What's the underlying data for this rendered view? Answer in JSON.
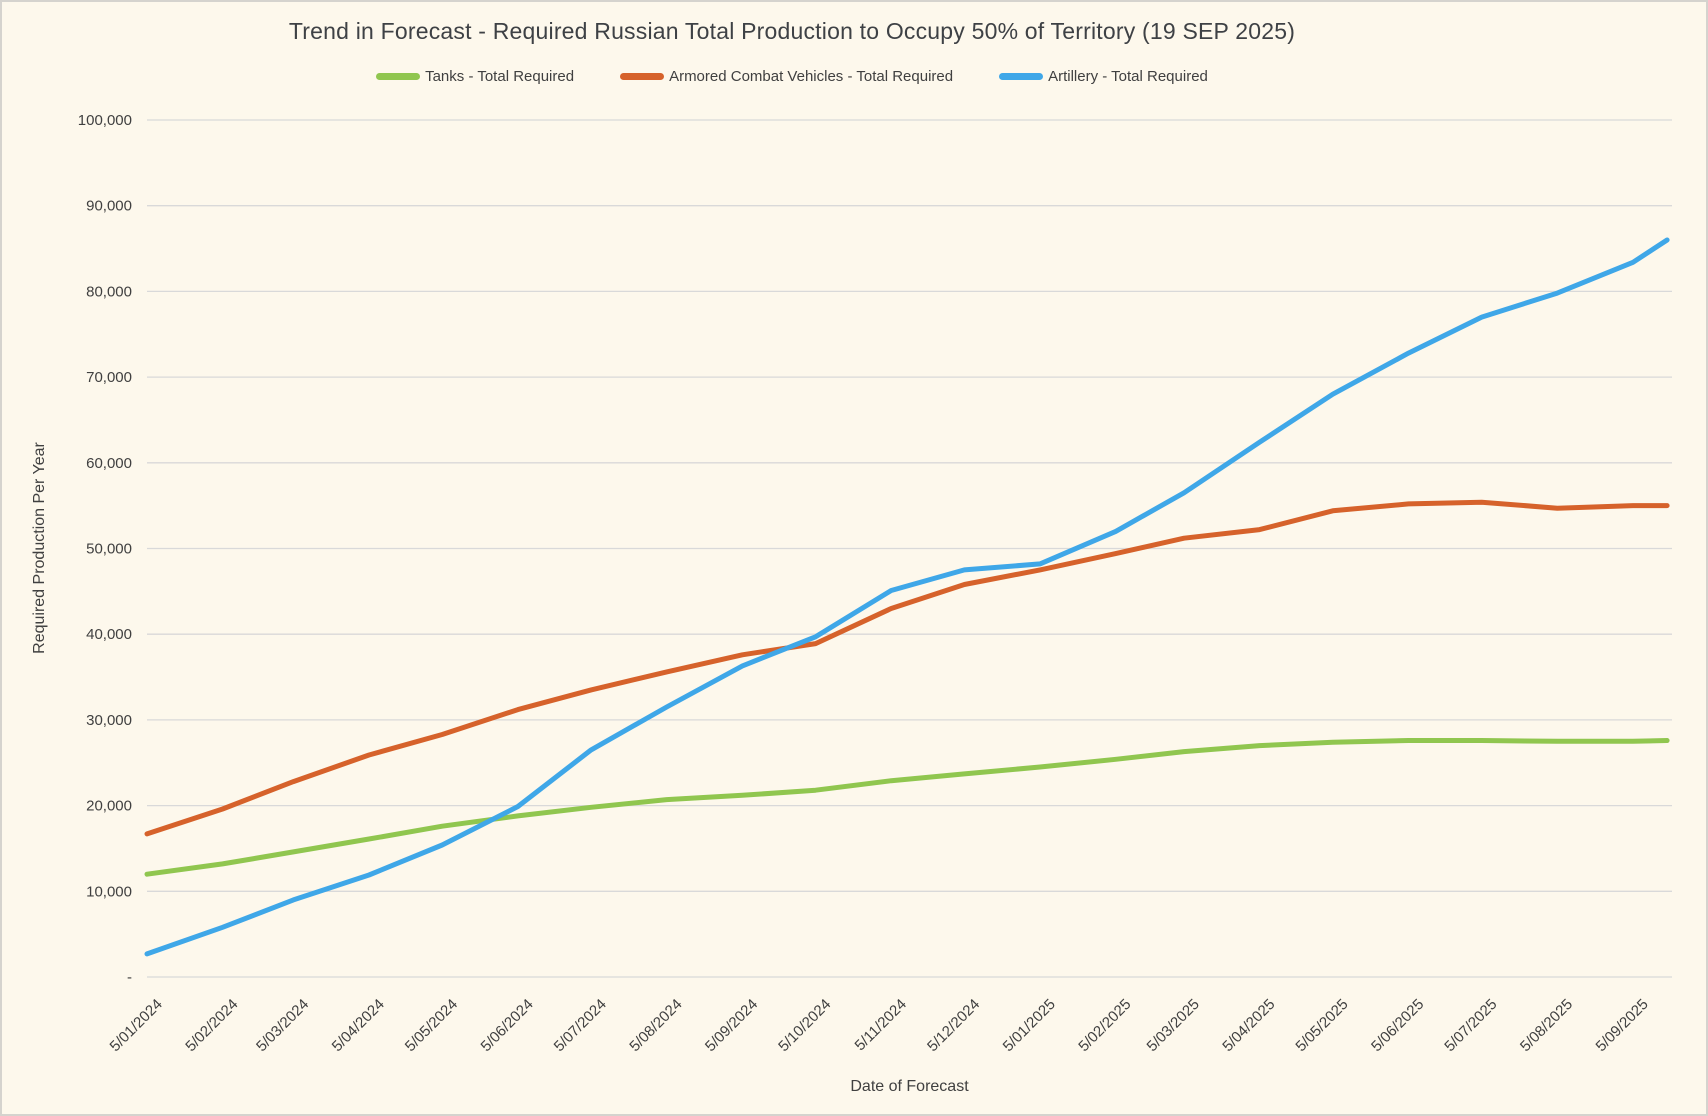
{
  "chart_data": {
    "type": "line",
    "title": "Trend in Forecast - Required Russian Total Production to Occupy 50% of Territory (19 SEP 2025)",
    "xlabel": "Date of Forecast",
    "ylabel": "Required Production Per Year",
    "ylim": [
      0,
      100000
    ],
    "y_tick_step": 10000,
    "y_tick_labels": [
      "-",
      "10,000",
      "20,000",
      "30,000",
      "40,000",
      "50,000",
      "60,000",
      "70,000",
      "80,000",
      "90,000",
      "100,000"
    ],
    "grid": "horizontal-only",
    "legend_position": "top-center",
    "x_axis_range": [
      "2024-01-05",
      "2025-09-21"
    ],
    "x_tick_dates": [
      "2024-01-05",
      "2024-02-05",
      "2024-03-05",
      "2024-04-05",
      "2024-05-05",
      "2024-06-05",
      "2024-07-05",
      "2024-08-05",
      "2024-09-05",
      "2024-10-05",
      "2024-11-05",
      "2024-12-05",
      "2025-01-05",
      "2025-02-05",
      "2025-03-05",
      "2025-04-05",
      "2025-05-05",
      "2025-06-05",
      "2025-07-05",
      "2025-08-05",
      "2025-09-05"
    ],
    "x_tick_labels": [
      "5/01/2024",
      "5/02/2024",
      "5/03/2024",
      "5/04/2024",
      "5/05/2024",
      "5/06/2024",
      "5/07/2024",
      "5/08/2024",
      "5/09/2024",
      "5/10/2024",
      "5/11/2024",
      "5/12/2024",
      "5/01/2025",
      "5/02/2025",
      "5/03/2025",
      "5/04/2025",
      "5/05/2025",
      "5/06/2025",
      "5/07/2025",
      "5/08/2025",
      "5/09/2025"
    ],
    "x": [
      "2024-01-05",
      "2024-02-05",
      "2024-03-05",
      "2024-04-05",
      "2024-05-05",
      "2024-06-05",
      "2024-07-05",
      "2024-08-05",
      "2024-09-05",
      "2024-10-05",
      "2024-11-05",
      "2024-12-05",
      "2025-01-05",
      "2025-02-05",
      "2025-03-05",
      "2025-04-05",
      "2025-05-05",
      "2025-06-05",
      "2025-07-05",
      "2025-08-05",
      "2025-09-05",
      "2025-09-19"
    ],
    "series": [
      {
        "name": "Tanks - Total Required",
        "color": "#90C64F",
        "values": [
          12000,
          13200,
          14600,
          16100,
          17600,
          18800,
          19800,
          20700,
          21200,
          21800,
          22900,
          23700,
          24500,
          25400,
          26300,
          27000,
          27400,
          27600,
          27600,
          27500,
          27500,
          27600
        ]
      },
      {
        "name": "Armored Combat Vehicles - Total Required",
        "color": "#D6622B",
        "values": [
          16700,
          19600,
          22800,
          25900,
          28300,
          31200,
          33500,
          35600,
          37600,
          38900,
          43000,
          45800,
          47500,
          49400,
          51200,
          52200,
          54400,
          55200,
          55400,
          54700,
          55000,
          55000
        ]
      },
      {
        "name": "Artillery - Total Required",
        "color": "#3FA7E8",
        "values": [
          2700,
          5800,
          9000,
          11900,
          15400,
          19900,
          26500,
          31500,
          36300,
          39700,
          45100,
          47500,
          48200,
          52000,
          56500,
          62400,
          68000,
          72800,
          77000,
          79800,
          83400,
          86000
        ]
      }
    ],
    "colors": {
      "background": "#FDF8EC",
      "frame_border": "#D5D3CE",
      "gridline": "#D9D9D9",
      "text": "#404040"
    }
  }
}
